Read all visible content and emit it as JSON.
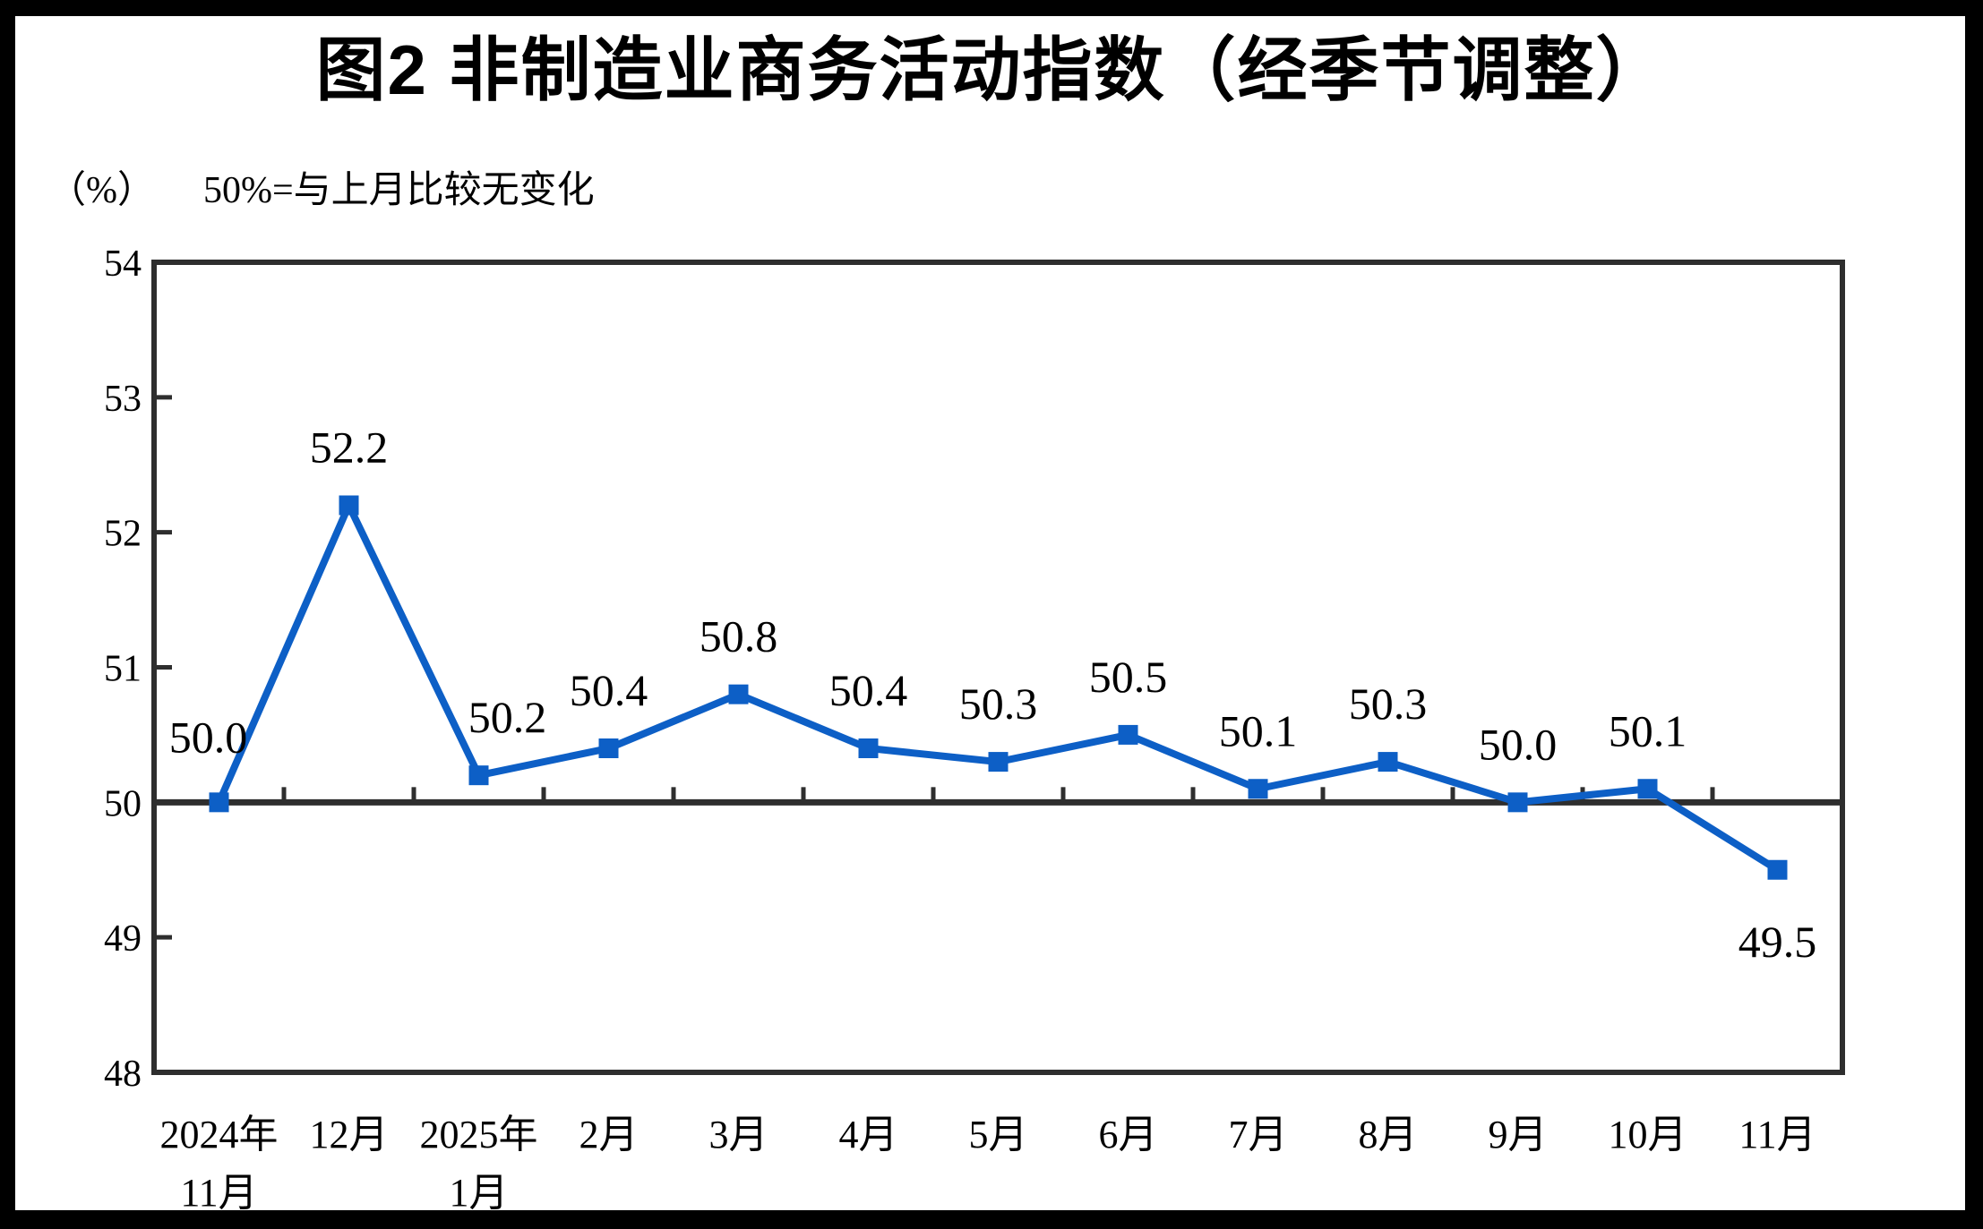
{
  "page": {
    "title": "图2 非制造业商务活动指数（经季节调整）",
    "unit_label": "（%）",
    "subtitle_note": "50%=与上月比较无变化"
  },
  "colors": {
    "series": "#0D5FC6",
    "axis": "#2E2E2E",
    "text": "#000000",
    "background": "#FFFFFF",
    "frame": "#000000"
  },
  "chart_data": {
    "type": "line",
    "title": "图2 非制造业商务活动指数（经季节调整）",
    "subtitle": "（%） 50%=与上月比较无变化",
    "categories": [
      "2024年\n11月",
      "12月",
      "2025年\n1月",
      "2月",
      "3月",
      "4月",
      "5月",
      "6月",
      "7月",
      "8月",
      "9月",
      "10月",
      "11月"
    ],
    "values": [
      50.0,
      52.2,
      50.2,
      50.4,
      50.8,
      50.4,
      50.3,
      50.5,
      50.1,
      50.3,
      50.0,
      50.1,
      49.5
    ],
    "data_labels": [
      "50.0",
      "52.2",
      "50.2",
      "50.4",
      "50.8",
      "50.4",
      "50.3",
      "50.5",
      "50.1",
      "50.3",
      "50.0",
      "50.1",
      "49.5"
    ],
    "y_ticks": [
      54,
      53,
      52,
      51,
      50,
      49,
      48
    ],
    "ylim": [
      48,
      54
    ],
    "xlabel": "",
    "ylabel": "（%）",
    "reference_line": 50,
    "marker": "square",
    "grid": false,
    "legend_position": "none"
  }
}
